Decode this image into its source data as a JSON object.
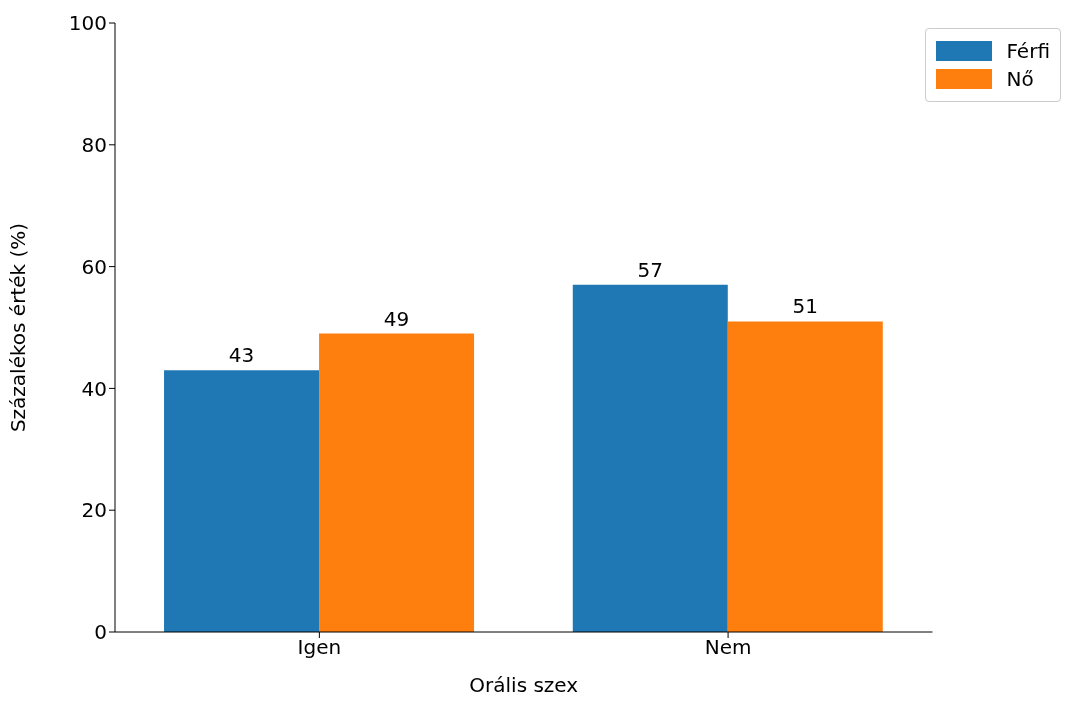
{
  "chart_data": {
    "type": "bar",
    "xlabel": "Orális szex",
    "ylabel": "Százalékos érték (%)",
    "categories": [
      "Igen",
      "Nem"
    ],
    "series": [
      {
        "name": "Férfi",
        "color": "#1f77b4",
        "values": [
          43,
          57
        ]
      },
      {
        "name": "Nő",
        "color": "#ff7f0e",
        "values": [
          49,
          51
        ]
      }
    ],
    "ylim": [
      0,
      100
    ],
    "yticks": [
      0,
      20,
      40,
      60,
      80,
      100
    ],
    "data_labels": true,
    "legend": "top right",
    "grid": false
  }
}
